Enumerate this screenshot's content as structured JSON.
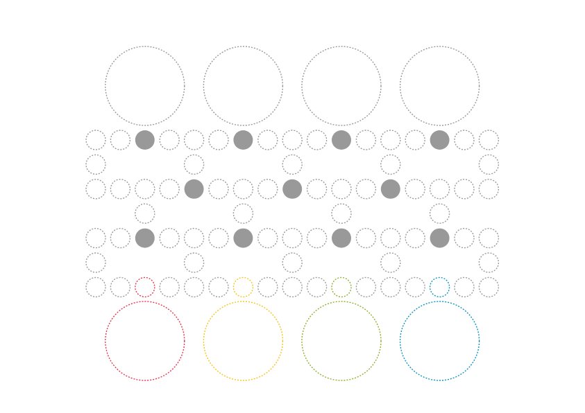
{
  "board": {
    "columns": 17,
    "rows": 7,
    "colors": {
      "outline": "#999999",
      "filled": "#999999",
      "red": "#e8334a",
      "yellow": "#f5c518",
      "green": "#8db02a",
      "blue": "#0a93c2"
    },
    "top_circles": [
      {
        "column": 2,
        "color": "outline"
      },
      {
        "column": 6,
        "color": "outline"
      },
      {
        "column": 10,
        "color": "outline"
      },
      {
        "column": 14,
        "color": "outline"
      }
    ],
    "bottom_circles": [
      {
        "column": 2,
        "color": "red"
      },
      {
        "column": 6,
        "color": "yellow"
      },
      {
        "column": 10,
        "color": "green"
      },
      {
        "column": 14,
        "color": "blue"
      }
    ],
    "grid": [
      {
        "row": 0,
        "cells": [
          {
            "c": 0,
            "s": "empty"
          },
          {
            "c": 1,
            "s": "empty"
          },
          {
            "c": 2,
            "s": "filled"
          },
          {
            "c": 3,
            "s": "empty"
          },
          {
            "c": 4,
            "s": "empty"
          },
          {
            "c": 5,
            "s": "empty"
          },
          {
            "c": 6,
            "s": "filled"
          },
          {
            "c": 7,
            "s": "empty"
          },
          {
            "c": 8,
            "s": "empty"
          },
          {
            "c": 9,
            "s": "empty"
          },
          {
            "c": 10,
            "s": "filled"
          },
          {
            "c": 11,
            "s": "empty"
          },
          {
            "c": 12,
            "s": "empty"
          },
          {
            "c": 13,
            "s": "empty"
          },
          {
            "c": 14,
            "s": "filled"
          },
          {
            "c": 15,
            "s": "empty"
          },
          {
            "c": 16,
            "s": "empty"
          }
        ]
      },
      {
        "row": 1,
        "cells": [
          {
            "c": 0,
            "s": "empty"
          },
          {
            "c": 4,
            "s": "empty"
          },
          {
            "c": 8,
            "s": "empty"
          },
          {
            "c": 12,
            "s": "empty"
          },
          {
            "c": 16,
            "s": "empty"
          }
        ]
      },
      {
        "row": 2,
        "cells": [
          {
            "c": 0,
            "s": "empty"
          },
          {
            "c": 1,
            "s": "empty"
          },
          {
            "c": 2,
            "s": "empty"
          },
          {
            "c": 3,
            "s": "empty"
          },
          {
            "c": 4,
            "s": "filled"
          },
          {
            "c": 5,
            "s": "empty"
          },
          {
            "c": 6,
            "s": "empty"
          },
          {
            "c": 7,
            "s": "empty"
          },
          {
            "c": 8,
            "s": "filled"
          },
          {
            "c": 9,
            "s": "empty"
          },
          {
            "c": 10,
            "s": "empty"
          },
          {
            "c": 11,
            "s": "empty"
          },
          {
            "c": 12,
            "s": "filled"
          },
          {
            "c": 13,
            "s": "empty"
          },
          {
            "c": 14,
            "s": "empty"
          },
          {
            "c": 15,
            "s": "empty"
          },
          {
            "c": 16,
            "s": "empty"
          }
        ]
      },
      {
        "row": 3,
        "cells": [
          {
            "c": 2,
            "s": "empty"
          },
          {
            "c": 6,
            "s": "empty"
          },
          {
            "c": 10,
            "s": "empty"
          },
          {
            "c": 14,
            "s": "empty"
          }
        ]
      },
      {
        "row": 4,
        "cells": [
          {
            "c": 0,
            "s": "empty"
          },
          {
            "c": 1,
            "s": "empty"
          },
          {
            "c": 2,
            "s": "filled"
          },
          {
            "c": 3,
            "s": "empty"
          },
          {
            "c": 4,
            "s": "empty"
          },
          {
            "c": 5,
            "s": "empty"
          },
          {
            "c": 6,
            "s": "filled"
          },
          {
            "c": 7,
            "s": "empty"
          },
          {
            "c": 8,
            "s": "empty"
          },
          {
            "c": 9,
            "s": "empty"
          },
          {
            "c": 10,
            "s": "filled"
          },
          {
            "c": 11,
            "s": "empty"
          },
          {
            "c": 12,
            "s": "empty"
          },
          {
            "c": 13,
            "s": "empty"
          },
          {
            "c": 14,
            "s": "filled"
          },
          {
            "c": 15,
            "s": "empty"
          },
          {
            "c": 16,
            "s": "empty"
          }
        ]
      },
      {
        "row": 5,
        "cells": [
          {
            "c": 0,
            "s": "empty"
          },
          {
            "c": 4,
            "s": "empty"
          },
          {
            "c": 8,
            "s": "empty"
          },
          {
            "c": 12,
            "s": "empty"
          },
          {
            "c": 16,
            "s": "empty"
          }
        ]
      },
      {
        "row": 6,
        "cells": [
          {
            "c": 0,
            "s": "empty"
          },
          {
            "c": 1,
            "s": "empty"
          },
          {
            "c": 2,
            "s": "red"
          },
          {
            "c": 3,
            "s": "empty"
          },
          {
            "c": 4,
            "s": "empty"
          },
          {
            "c": 5,
            "s": "empty"
          },
          {
            "c": 6,
            "s": "yellow"
          },
          {
            "c": 7,
            "s": "empty"
          },
          {
            "c": 8,
            "s": "empty"
          },
          {
            "c": 9,
            "s": "empty"
          },
          {
            "c": 10,
            "s": "green"
          },
          {
            "c": 11,
            "s": "empty"
          },
          {
            "c": 12,
            "s": "empty"
          },
          {
            "c": 13,
            "s": "empty"
          },
          {
            "c": 14,
            "s": "blue"
          },
          {
            "c": 15,
            "s": "empty"
          },
          {
            "c": 16,
            "s": "empty"
          }
        ]
      }
    ]
  }
}
